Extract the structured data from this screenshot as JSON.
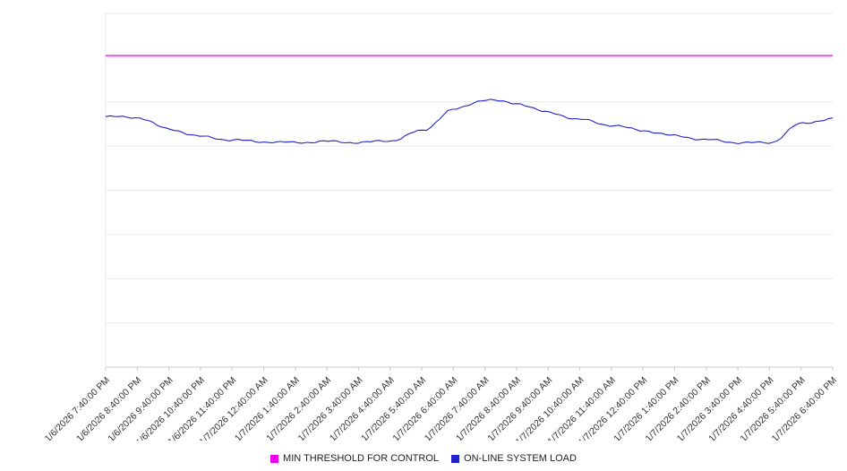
{
  "chart_data": {
    "type": "line",
    "title": "",
    "xlabel": "",
    "ylabel": "",
    "ylim": [
      0,
      100
    ],
    "y_axis_labels_visible": false,
    "grid": true,
    "grid_divisions": 8,
    "legend_position": "bottom",
    "colors": {
      "grid": "#e9e9e9",
      "axis": "#c9c9c9",
      "text": "#333333",
      "background": "#ffffff"
    },
    "x": [
      "1/6/2026 7:40:00 PM",
      "1/6/2026 8:40:00 PM",
      "1/6/2026 9:40:00 PM",
      "1/6/2026 10:40:00 PM",
      "1/6/2026 11:40:00 PM",
      "1/7/2026 12:40:00 AM",
      "1/7/2026 1:40:00 AM",
      "1/7/2026 2:40:00 AM",
      "1/7/2026 3:40:00 AM",
      "1/7/2026 4:40:00 AM",
      "1/7/2026 5:40:00 AM",
      "1/7/2026 6:40:00 AM",
      "1/7/2026 7:40:00 AM",
      "1/7/2026 8:40:00 AM",
      "1/7/2026 9:40:00 AM",
      "1/7/2026 10:40:00 AM",
      "1/7/2026 11:40:00 AM",
      "1/7/2026 12:40:00 PM",
      "1/7/2026 1:40:00 PM",
      "1/7/2026 2:40:00 PM",
      "1/7/2026 3:40:00 PM",
      "1/7/2026 4:40:00 PM",
      "1/7/2026 5:40:00 PM",
      "1/7/2026 6:40:00 PM"
    ],
    "series": [
      {
        "name": "MIN THRESHOLD FOR CONTROL",
        "color": "#ee00ee",
        "kind": "constant-threshold",
        "values": [
          88.1,
          88.1,
          88.1,
          88.1,
          88.1,
          88.1,
          88.1,
          88.1,
          88.1,
          88.1,
          88.1,
          88.1,
          88.1,
          88.1,
          88.1,
          88.1,
          88.1,
          88.1,
          88.1,
          88.1,
          88.1,
          88.1,
          88.1,
          88.1
        ]
      },
      {
        "name": "ON-LINE SYSTEM LOAD",
        "color": "#2222cc",
        "kind": "line",
        "values": [
          70.8,
          70.6,
          67.3,
          65.2,
          64.2,
          63.7,
          63.5,
          63.8,
          63.5,
          64.0,
          66.8,
          72.8,
          75.6,
          74.6,
          72.0,
          70.0,
          68.4,
          66.9,
          65.4,
          64.3,
          63.5,
          63.4,
          68.8,
          70.3
        ]
      }
    ]
  }
}
